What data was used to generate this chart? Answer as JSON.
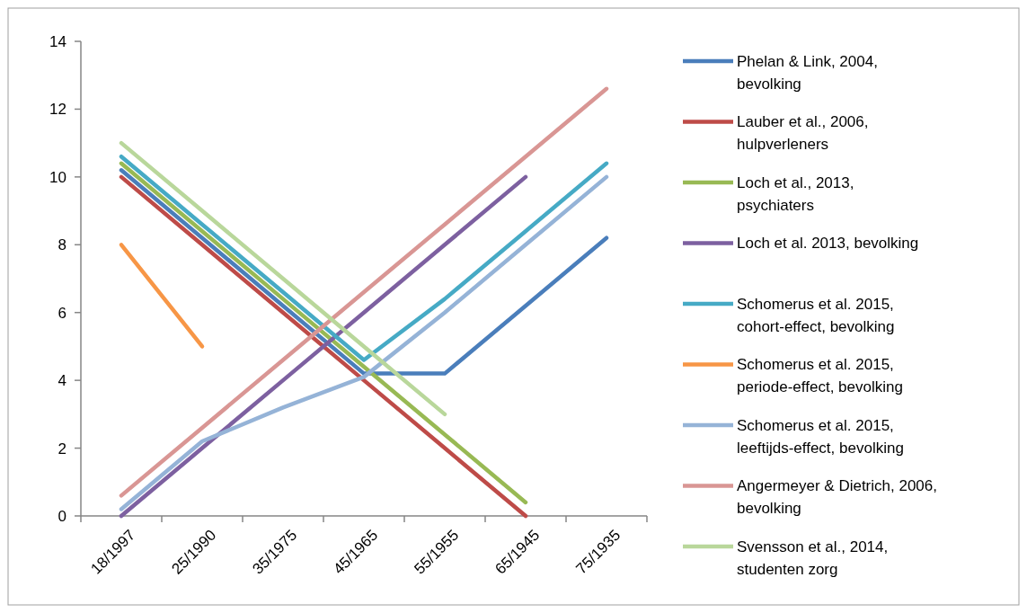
{
  "chart_data": {
    "type": "line",
    "categories": [
      "18/1997",
      "25/1990",
      "35/1975",
      "45/1965",
      "55/1955",
      "65/1945",
      "75/1935"
    ],
    "ylim": [
      0,
      14
    ],
    "yticks": [
      0,
      2,
      4,
      6,
      8,
      10,
      12,
      14
    ],
    "grid": false,
    "legend": "right",
    "marker": "none",
    "line_style": "solid",
    "series": [
      {
        "name": "Phelan & Link, 2004, bevolking",
        "color": "#4a7ebb",
        "values": [
          10.2,
          8.2,
          6.2,
          4.2,
          4.2,
          6.2,
          8.2
        ]
      },
      {
        "name": "Lauber et al., 2006, hulpverleners",
        "color": "#be4b48",
        "values": [
          10,
          8,
          6,
          4,
          2,
          0,
          null
        ]
      },
      {
        "name": "Loch et al., 2013, psychiaters",
        "color": "#98b954",
        "values": [
          10.4,
          8.4,
          6.4,
          4.4,
          2.4,
          0.4,
          null
        ]
      },
      {
        "name": "Loch et al. 2013, bevolking",
        "color": "#7d60a0",
        "values": [
          0,
          2,
          4,
          6,
          8,
          10,
          null
        ]
      },
      {
        "name": "Schomerus et al. 2015, cohort-effect, bevolking",
        "color": "#46aac5",
        "values": [
          10.6,
          8.6,
          6.6,
          4.6,
          6.4,
          8.4,
          10.4
        ]
      },
      {
        "name": "Schomerus et al. 2015, periode-effect, bevolking",
        "color": "#f79646",
        "values": [
          8,
          5,
          null,
          null,
          null,
          null,
          null
        ]
      },
      {
        "name": "Schomerus et al. 2015, leeftijds-effect, bevolking",
        "color": "#95b3d7",
        "values": [
          0.2,
          2.2,
          3.2,
          4.1,
          6,
          8,
          10
        ]
      },
      {
        "name": "Angermeyer & Dietrich, 2006, bevolking",
        "color": "#d99694",
        "values": [
          0.6,
          2.6,
          4.6,
          6.6,
          8.6,
          10.6,
          12.6
        ]
      },
      {
        "name": "Svensson et al., 2014, studenten zorg",
        "color": "#b9d79b",
        "values": [
          11,
          9,
          7,
          5,
          3,
          null,
          null
        ]
      }
    ]
  }
}
